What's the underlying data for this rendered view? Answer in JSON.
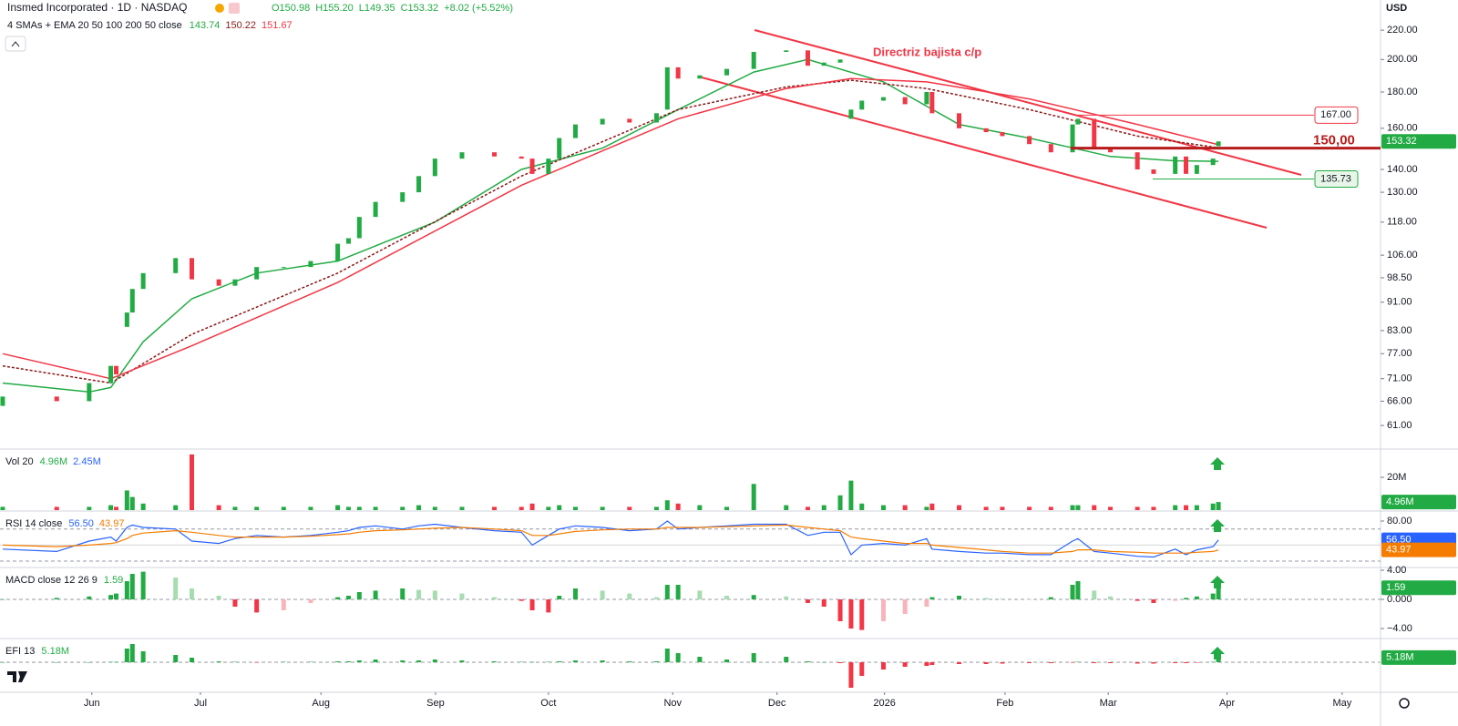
{
  "header": {
    "currency": "USD"
  },
  "chart_data": [
    {
      "type": "candlestick",
      "title": "Insmed Incorporated · 1D · NASDAQ",
      "quote": [
        "O150.98",
        "H155.20",
        "L149.35",
        "C153.32",
        "+8.02 (+5.52%)"
      ],
      "indicator_title": "4 SMAs + EMA 20 50 100 200 50 close",
      "indicator_values": [
        "143.74",
        "150.22",
        "151.67"
      ],
      "annotation": "Directriz bajista c/p",
      "price_label": "153.32",
      "up_color": "#22ab44",
      "down_color": "#f23645",
      "log_scale": true,
      "ylim": [
        56.5,
        242.6
      ],
      "yticks": [
        {
          "value": 220,
          "label": "220.00"
        },
        {
          "value": 200,
          "label": "200.00"
        },
        {
          "value": 180,
          "label": "180.00"
        },
        {
          "value": 160,
          "label": "160.00"
        },
        {
          "value": 140,
          "label": "140.00"
        },
        {
          "value": 130,
          "label": "130.00"
        },
        {
          "value": 118,
          "label": "118.00"
        },
        {
          "value": 106,
          "label": "106.00"
        },
        {
          "value": 98.5,
          "label": "98.50"
        },
        {
          "value": 91,
          "label": "91.00"
        },
        {
          "value": 83,
          "label": "83.00"
        },
        {
          "value": 77,
          "label": "77.00"
        },
        {
          "value": 71,
          "label": "71.00"
        },
        {
          "value": 66,
          "label": "66.00"
        },
        {
          "value": 61,
          "label": "61.00"
        }
      ],
      "xlim": [
        -0.5,
        255
      ],
      "xticks": [
        {
          "value": 16.5,
          "label": "Jun"
        },
        {
          "value": 36.6,
          "label": "Jul"
        },
        {
          "value": 58.9,
          "label": "Aug"
        },
        {
          "value": 80.1,
          "label": "Sep"
        },
        {
          "value": 101,
          "label": "Oct"
        },
        {
          "value": 124,
          "label": "Nov"
        },
        {
          "value": 143.3,
          "label": "Dec"
        },
        {
          "value": 163.2,
          "label": "2026"
        },
        {
          "value": 185.5,
          "label": "Feb"
        },
        {
          "value": 204.6,
          "label": "Mar"
        },
        {
          "value": 226.6,
          "label": "Apr"
        },
        {
          "value": 247.9,
          "label": "May"
        }
      ],
      "x": [
        0,
        10,
        16,
        20,
        21,
        23,
        24,
        26,
        32,
        35,
        40,
        43,
        47,
        52,
        57,
        62,
        64,
        66,
        69,
        74,
        77,
        80,
        85,
        91,
        96,
        98,
        101,
        103,
        106,
        111,
        116,
        121,
        123,
        125,
        129,
        134,
        139,
        145,
        149,
        152,
        155,
        157,
        159,
        163,
        167,
        171,
        172,
        177,
        182,
        185,
        190,
        194,
        198,
        199,
        202,
        205,
        210,
        213,
        217,
        219,
        221,
        224,
        225
      ],
      "open": [
        65,
        67,
        66,
        70,
        74,
        84,
        88,
        95,
        100,
        105,
        98,
        96,
        98,
        102,
        102,
        104,
        110,
        112,
        120,
        126,
        130,
        137,
        145,
        148,
        146,
        145,
        138,
        145,
        155,
        162,
        165,
        163,
        170,
        195,
        188,
        190,
        194,
        205,
        206,
        196,
        198,
        165,
        170,
        175,
        177,
        173,
        180,
        168,
        160,
        158,
        156,
        152,
        148,
        162,
        165,
        150,
        148,
        140,
        138,
        146,
        138,
        142,
        150.98
      ],
      "close": [
        67,
        66,
        70,
        74,
        72,
        88,
        95,
        100,
        105,
        98,
        96,
        98,
        102,
        102,
        104,
        110,
        112,
        120,
        126,
        130,
        137,
        145,
        148,
        146,
        145,
        138,
        145,
        155,
        162,
        165,
        163,
        168,
        195,
        188,
        190,
        194,
        205,
        206,
        196,
        198,
        200,
        170,
        175,
        177,
        173,
        180,
        168,
        160,
        158,
        156,
        152,
        148,
        162,
        165,
        150,
        148,
        140,
        138,
        146,
        138,
        142,
        145,
        153.32
      ],
      "series": [
        {
          "color": "#22ab44",
          "x": [
            0,
            16,
            20,
            26,
            35,
            47,
            62,
            80,
            96,
            111,
            125,
            139,
            149,
            163,
            177,
            190,
            205,
            217,
            225
          ],
          "values": [
            70,
            68,
            69,
            80,
            92,
            100,
            104,
            118,
            140,
            150,
            170,
            192,
            200,
            186,
            162,
            155,
            146,
            144,
            143.74
          ]
        },
        {
          "color": "#8b1a1a",
          "dash": true,
          "x": [
            0,
            20,
            35,
            62,
            96,
            125,
            145,
            157,
            171,
            190,
            210,
            225
          ],
          "values": [
            74,
            70,
            82,
            100,
            137,
            170,
            183,
            187,
            182,
            170,
            156,
            150.22
          ]
        },
        {
          "color": "#f23645",
          "x": [
            0,
            20,
            35,
            62,
            96,
            125,
            145,
            157,
            171,
            190,
            210,
            225
          ],
          "values": [
            77,
            71,
            79,
            97,
            133,
            165,
            182,
            188,
            186,
            176,
            162,
            151.67
          ]
        }
      ],
      "levels": [
        {
          "value": 167,
          "label": "167.00",
          "color": "#f23645",
          "line_width": 1
        },
        {
          "value": 150,
          "label": "150,00",
          "color": "#b71c1c",
          "line_width": 3
        },
        {
          "value": 135.73,
          "color": "#22ab44",
          "line_width": 1
        }
      ]
    },
    {
      "type": "bar",
      "title": "Vol 20",
      "legend_values": [
        "4.96M",
        "2.45M"
      ],
      "legend_colors": [
        "#22ab44",
        "#2962ff"
      ],
      "x": [
        0,
        10,
        16,
        20,
        21,
        23,
        24,
        26,
        32,
        35,
        40,
        43,
        47,
        52,
        57,
        62,
        64,
        66,
        69,
        74,
        77,
        80,
        85,
        91,
        96,
        98,
        101,
        103,
        106,
        111,
        116,
        121,
        123,
        125,
        129,
        134,
        139,
        145,
        149,
        152,
        155,
        157,
        159,
        163,
        167,
        171,
        172,
        177,
        182,
        185,
        190,
        194,
        198,
        199,
        202,
        205,
        210,
        213,
        217,
        219,
        221,
        224,
        225
      ],
      "values": [
        2,
        2,
        2,
        3,
        2,
        12,
        8,
        4,
        3,
        34,
        3,
        2,
        2,
        2,
        2,
        3,
        2,
        2,
        2,
        2,
        3,
        2,
        2,
        2,
        2,
        4,
        2,
        3,
        2,
        2,
        2,
        2,
        6,
        4,
        3,
        2,
        16,
        3,
        2,
        3,
        9,
        18,
        4,
        3,
        3,
        2,
        4,
        3,
        2,
        2,
        2,
        2,
        3,
        3,
        3,
        2,
        2,
        2,
        3,
        3,
        3,
        4,
        4.96
      ],
      "ylim": [
        0,
        36.7
      ],
      "yticks": [
        {
          "value": 20,
          "label": "20M"
        }
      ]
    },
    {
      "type": "line",
      "title": "RSI 14 close",
      "legend_values": [
        "56.50",
        "43.97"
      ],
      "x": [
        0,
        10,
        16,
        20,
        21,
        23,
        24,
        26,
        32,
        35,
        40,
        43,
        47,
        52,
        57,
        62,
        64,
        66,
        69,
        74,
        77,
        80,
        85,
        91,
        96,
        98,
        101,
        103,
        106,
        111,
        116,
        121,
        123,
        125,
        129,
        134,
        139,
        145,
        149,
        152,
        155,
        157,
        159,
        163,
        167,
        171,
        172,
        177,
        182,
        185,
        190,
        194,
        198,
        199,
        202,
        205,
        210,
        213,
        217,
        219,
        221,
        224,
        225
      ],
      "series": [
        {
          "color": "#2962ff",
          "values": [
            45,
            42,
            55,
            60,
            55,
            72,
            75,
            72,
            70,
            55,
            52,
            58,
            62,
            60,
            62,
            66,
            68,
            72,
            74,
            70,
            74,
            76,
            72,
            68,
            66,
            50,
            62,
            70,
            74,
            72,
            68,
            70,
            80,
            70,
            72,
            74,
            76,
            76,
            62,
            66,
            66,
            38,
            50,
            52,
            50,
            58,
            45,
            42,
            40,
            40,
            38,
            38,
            55,
            58,
            42,
            40,
            36,
            35,
            45,
            38,
            44,
            48,
            56.5
          ]
        },
        {
          "color": "#f57c00",
          "values": [
            50,
            48,
            50,
            52,
            53,
            58,
            62,
            65,
            68,
            66,
            62,
            60,
            60,
            60,
            61,
            63,
            64,
            66,
            68,
            69,
            70,
            71,
            72,
            70,
            68,
            62,
            62,
            64,
            67,
            69,
            70,
            70,
            72,
            72,
            72,
            73,
            74,
            75,
            72,
            70,
            68,
            60,
            58,
            55,
            52,
            52,
            50,
            47,
            44,
            42,
            40,
            40,
            42,
            44,
            44,
            42,
            41,
            40,
            40,
            40,
            41,
            42,
            43.97
          ]
        }
      ],
      "ylim": [
        23.1,
        91.4
      ],
      "yticks": [
        {
          "value": 80,
          "label": "80.00"
        }
      ],
      "bands": [
        70,
        50,
        30
      ]
    },
    {
      "type": "bar",
      "title": "MACD close 12 26 9",
      "legend_values": [
        "1.59"
      ],
      "legend_colors": [
        "#22ab44"
      ],
      "x": [
        0,
        10,
        16,
        20,
        21,
        23,
        24,
        26,
        32,
        35,
        40,
        43,
        47,
        52,
        57,
        62,
        64,
        66,
        69,
        74,
        77,
        80,
        85,
        91,
        96,
        98,
        101,
        103,
        106,
        111,
        116,
        121,
        123,
        125,
        129,
        134,
        139,
        145,
        149,
        152,
        155,
        157,
        159,
        163,
        167,
        171,
        172,
        177,
        182,
        185,
        190,
        194,
        198,
        199,
        202,
        205,
        210,
        213,
        217,
        219,
        221,
        224,
        225
      ],
      "values": [
        0,
        0.2,
        0.4,
        0.6,
        0.8,
        2.5,
        3.5,
        3.8,
        3,
        1.5,
        0.5,
        -1,
        -1.8,
        -1.5,
        -0.5,
        0.3,
        0.5,
        1,
        1.2,
        1.5,
        1.3,
        1.2,
        0.8,
        0.3,
        -0.2,
        -1.5,
        -1.8,
        0.5,
        1.5,
        1.2,
        0.8,
        0.3,
        2,
        2,
        1.2,
        0.5,
        0.6,
        0.4,
        -0.5,
        -1,
        -3,
        -4,
        -4.2,
        -3,
        -2,
        -1,
        0.3,
        0.5,
        0.2,
        0.1,
        0,
        0.3,
        2,
        2.5,
        1.2,
        0.4,
        -0.2,
        -0.5,
        -0.2,
        0.2,
        0.4,
        0.8,
        1.59
      ],
      "ylim": [
        -5.25,
        4.25
      ],
      "yticks": [
        {
          "value": 4,
          "label": "4.00"
        },
        {
          "value": 0,
          "label": "0.000"
        },
        {
          "value": -4,
          "label": "−4.00"
        }
      ],
      "colors": [
        "#22ab44",
        "#a5dcb0",
        "#f23645",
        "#f8b4bb"
      ]
    },
    {
      "type": "bar",
      "title": "EFI 13",
      "legend_values": [
        "5.18M"
      ],
      "legend_colors": [
        "#22ab44"
      ],
      "x": [
        0,
        10,
        16,
        20,
        21,
        23,
        24,
        26,
        32,
        35,
        40,
        43,
        47,
        52,
        57,
        62,
        64,
        66,
        69,
        74,
        77,
        80,
        85,
        91,
        96,
        98,
        101,
        103,
        106,
        111,
        116,
        121,
        123,
        125,
        129,
        134,
        139,
        145,
        149,
        152,
        155,
        157,
        159,
        163,
        167,
        171,
        172,
        177,
        182,
        185,
        190,
        194,
        198,
        199,
        202,
        205,
        210,
        213,
        217,
        219,
        221,
        224,
        225
      ],
      "values": [
        0,
        0,
        0,
        0.5,
        0.3,
        15,
        20,
        12,
        8,
        5,
        1,
        0.5,
        -0.3,
        0.5,
        0.5,
        1,
        1,
        2,
        3,
        2,
        2,
        3,
        2,
        1,
        0.5,
        0.3,
        0.5,
        1,
        2,
        2,
        1,
        1,
        15,
        10,
        6,
        3,
        10,
        6,
        1,
        0,
        -1,
        -28,
        -15,
        -8,
        -5,
        -4,
        -3,
        -2,
        -2,
        -1.5,
        -1,
        -1,
        -0.5,
        0.5,
        -1,
        -1,
        -1.5,
        -1.5,
        -1,
        -1,
        -0.5,
        0.5,
        5.18
      ],
      "ylim": [
        -33,
        25
      ],
      "colors": [
        "#22ab44",
        "#f23645"
      ]
    }
  ]
}
